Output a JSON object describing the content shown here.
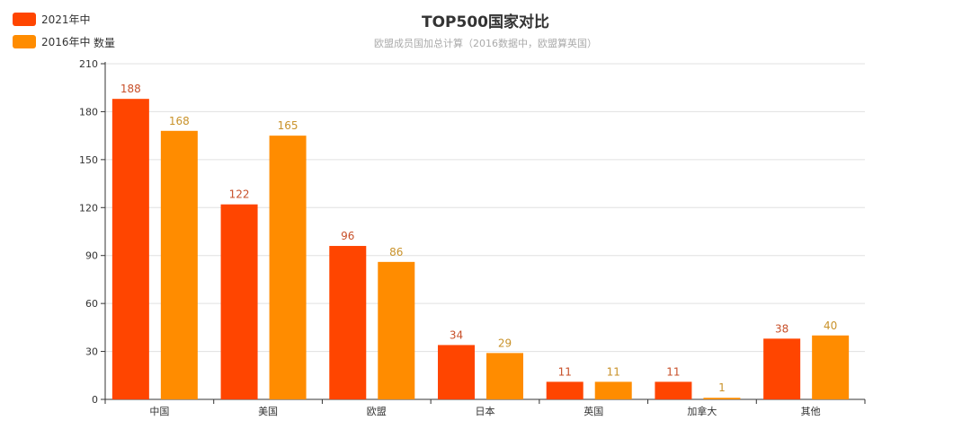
{
  "chart_data": {
    "type": "bar",
    "title": "TOP500国家对比",
    "subtitle": "欧盟成员国加总计算（2016数据中，欧盟算英国）",
    "ylabel": "数量",
    "xlabel": "",
    "ylim": [
      0,
      210
    ],
    "yticks": [
      0,
      30,
      60,
      90,
      120,
      150,
      180,
      210
    ],
    "grid": true,
    "legend_position": "top-left",
    "categories": [
      "中国",
      "美国",
      "欧盟",
      "日本",
      "英国",
      "加拿大",
      "其他"
    ],
    "series": [
      {
        "name": "2021年中",
        "color": "#ff4500",
        "label_color": "#c8502a",
        "values": [
          188,
          122,
          96,
          34,
          11,
          11,
          38
        ]
      },
      {
        "name": "2016年中",
        "color": "#ff8c00",
        "label_color": "#c9922a",
        "values": [
          168,
          165,
          86,
          29,
          11,
          1,
          40
        ]
      }
    ]
  }
}
